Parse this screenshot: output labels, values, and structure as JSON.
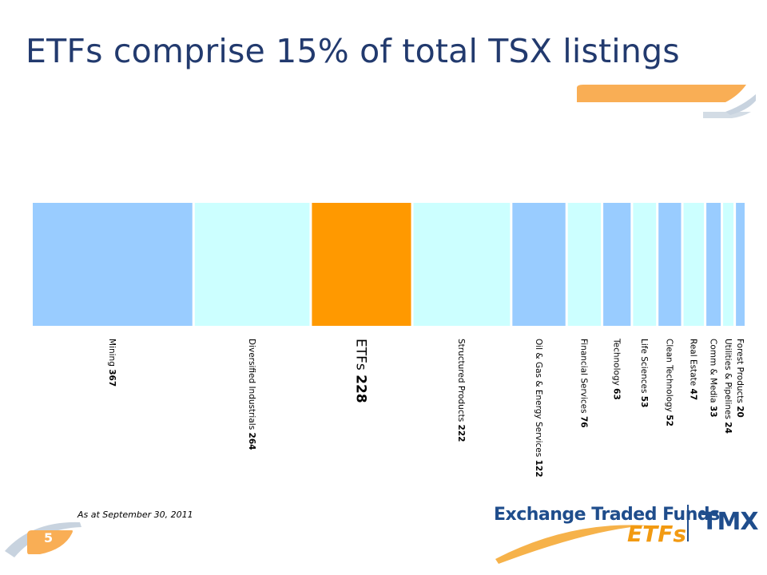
{
  "title": "ETFs comprise 15% of total TSX listings",
  "footnote": "As at September 30, 2011",
  "page_number": "5",
  "logo": {
    "main_text": "Exchange Traded Funds",
    "sub_text": "ETFs",
    "brand": "TMX"
  },
  "colors": {
    "title": "#223a6e",
    "blue_segment": "#99ccff",
    "cyan_segment": "#ccffff",
    "highlight_segment": "#ff9900",
    "accent_orange": "#f9ae55",
    "accent_gray": "#c8d3df"
  },
  "chart_data": {
    "type": "bar",
    "subtype": "stacked-horizontal-proportional",
    "highlight": "ETFs",
    "categories": [
      "Mining",
      "Diversified Industrials",
      "ETFs",
      "Structured Products",
      "Oil & Gas & Energy Services",
      "Financial Services",
      "Technology",
      "Life Sciences",
      "Clean Technology",
      "Real Estate",
      "Comm & Media",
      "Utilities & Pipelines",
      "Forest Products"
    ],
    "values": [
      367,
      264,
      228,
      222,
      122,
      76,
      63,
      53,
      52,
      47,
      33,
      24,
      20
    ],
    "label_text": [
      "Mining",
      "Diversified  Industrials",
      "ETFs",
      "Structured  Products",
      "Oil & Gas & Energy Services",
      "Financial  Services",
      "Technology",
      "Life Sciences",
      "Clean Technology",
      "Real Estate",
      "Comm & Media",
      "Utilities  & Pipelines",
      "Forest Products"
    ],
    "value_text": [
      "367",
      "264",
      "228",
      "222",
      "122",
      "76",
      "63",
      "53",
      "52",
      "47",
      "33",
      "24",
      "20"
    ],
    "legend": "none",
    "grid": false
  }
}
